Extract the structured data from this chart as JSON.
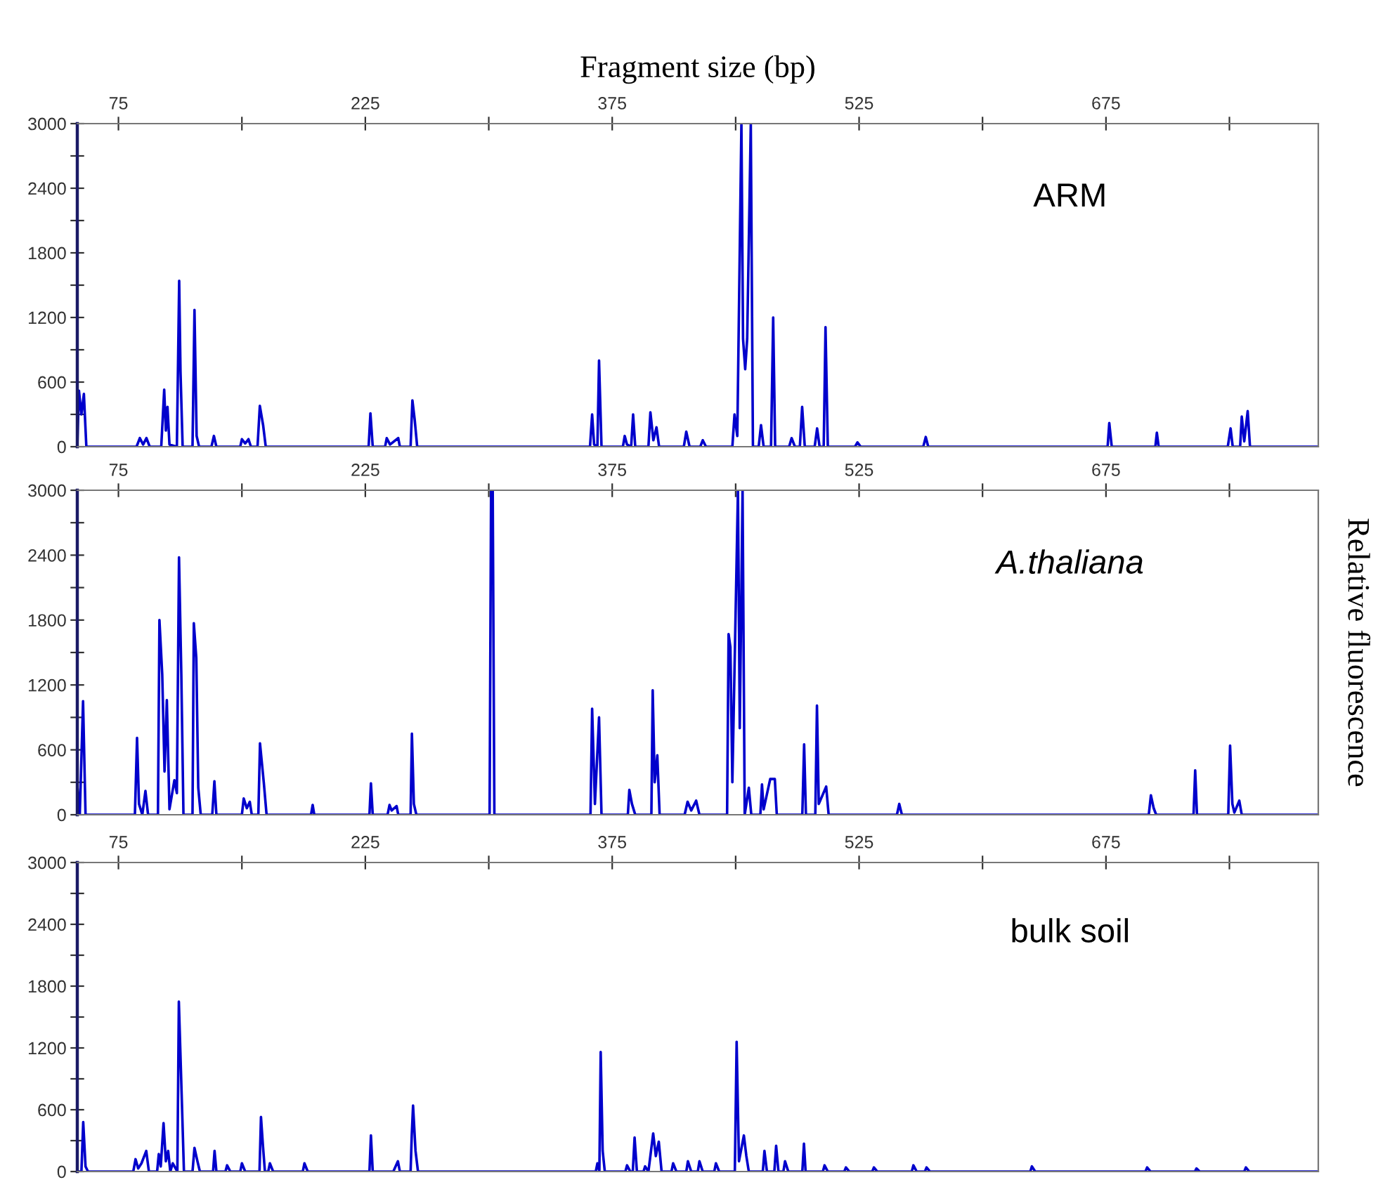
{
  "chart_data": [
    {
      "type": "line",
      "title": "ARM",
      "xlabel": "Fragment size (bp)",
      "xlim": [
        50,
        804
      ],
      "ylim": [
        0,
        3000
      ],
      "xticks": [
        75,
        {
          "value": 150,
          "label": null
        },
        225,
        {
          "value": 300,
          "label": null
        },
        375,
        {
          "value": 450,
          "label": null
        },
        525,
        {
          "value": 600,
          "label": null
        },
        675,
        {
          "value": 750,
          "label": null
        }
      ],
      "yticks": [
        0,
        {
          "value": 300,
          "label": null
        },
        600,
        {
          "value": 900,
          "label": null
        },
        1200,
        {
          "value": 1500,
          "label": null
        },
        1800,
        {
          "value": 2100,
          "label": null
        },
        2400,
        {
          "value": 2700,
          "label": null
        },
        3000
      ],
      "series": [
        {
          "color": "#0000cc",
          "x": [
            50,
            51,
            52.5,
            54,
            55.5,
            86,
            88,
            90,
            92,
            94,
            101,
            102.8,
            103.8,
            104.8,
            106,
            110.5,
            111.9,
            112.7,
            114,
            120,
            121.2,
            122.5,
            124,
            131.5,
            133,
            134.5,
            149,
            150,
            152,
            154,
            155.5,
            159.5,
            160.9,
            162.9,
            164.5,
            227,
            228.1,
            229.5,
            237,
            238,
            240,
            245,
            246,
            252.5,
            253.6,
            255,
            256.5,
            361.5,
            362.8,
            364,
            366,
            367,
            368.5,
            381.5,
            382.6,
            384,
            386.5,
            387.7,
            389,
            397,
            398.2,
            400,
            401.9,
            403.5,
            418.5,
            420,
            422,
            428.5,
            430,
            432,
            448,
            449.3,
            451,
            453.5,
            454.5,
            455.8,
            457,
            459.2,
            460.5,
            464,
            465.4,
            467,
            471.5,
            472.8,
            474,
            482.5,
            484,
            486,
            489,
            490.4,
            492,
            498,
            499.5,
            501,
            503.5,
            504.6,
            506,
            522.5,
            524,
            526,
            564,
            565.5,
            567,
            676,
            677,
            678.5,
            705,
            705.9,
            707,
            749,
            750.7,
            752,
            756.5,
            757.5,
            759,
            761.1,
            762.5,
            804
          ],
          "values": [
            0,
            520,
            300,
            490,
            0,
            0,
            80,
            20,
            80,
            0,
            0,
            530,
            150,
            370,
            20,
            0,
            1540,
            700,
            0,
            0,
            1270,
            100,
            0,
            0,
            100,
            0,
            0,
            70,
            30,
            70,
            0,
            0,
            380,
            200,
            0,
            0,
            310,
            0,
            0,
            80,
            20,
            80,
            0,
            0,
            430,
            250,
            0,
            0,
            300,
            20,
            0,
            800,
            0,
            0,
            100,
            20,
            0,
            300,
            0,
            0,
            320,
            60,
            180,
            0,
            0,
            140,
            0,
            0,
            60,
            0,
            0,
            300,
            100,
            3000,
            1000,
            720,
            1000,
            3000,
            0,
            0,
            200,
            0,
            0,
            1200,
            0,
            0,
            80,
            0,
            0,
            370,
            0,
            0,
            170,
            0,
            0,
            1110,
            0,
            0,
            40,
            0,
            0,
            90,
            0,
            0,
            220,
            0,
            0,
            130,
            0,
            0,
            170,
            0,
            0,
            280,
            50,
            330,
            0,
            0
          ]
        }
      ]
    },
    {
      "type": "line",
      "title": "A.thaliana",
      "ylabel": "Relative fluorescence",
      "xlim": [
        50,
        804
      ],
      "ylim": [
        0,
        3000
      ],
      "xticks": [
        75,
        {
          "value": 150,
          "label": null
        },
        225,
        {
          "value": 300,
          "label": null
        },
        375,
        {
          "value": 450,
          "label": null
        },
        525,
        {
          "value": 600,
          "label": null
        },
        675,
        {
          "value": 750,
          "label": null
        }
      ],
      "yticks": [
        0,
        {
          "value": 300,
          "label": null
        },
        600,
        {
          "value": 900,
          "label": null
        },
        1200,
        {
          "value": 1500,
          "label": null
        },
        1800,
        {
          "value": 2100,
          "label": null
        },
        2400,
        {
          "value": 2700,
          "label": null
        },
        3000
      ],
      "series": [
        {
          "color": "#0000cc",
          "x": [
            50,
            50.1,
            51.5,
            53.5,
            55,
            85,
            86.3,
            87.5,
            89.5,
            91.4,
            93,
            99,
            99.9,
            101.6,
            103,
            104.4,
            106,
            109,
            110.5,
            111.8,
            113.2,
            114.5,
            120,
            120.8,
            122.3,
            123.5,
            125,
            132,
            133.3,
            134.5,
            150,
            151.1,
            153,
            154.8,
            156,
            160,
            161,
            163.3,
            165,
            192,
            193,
            194,
            227.5,
            228.4,
            229.5,
            238.5,
            239.7,
            241,
            244,
            245,
            252.5,
            253.3,
            254.5,
            256,
            300.5,
            301.4,
            302.4,
            303.4,
            361.8,
            362.8,
            364.5,
            367,
            368.5,
            384.5,
            385.4,
            387,
            389,
            398.8,
            399.6,
            400.8,
            402.4,
            403.8,
            419,
            420.8,
            423,
            426,
            428,
            444.8,
            445.7,
            446.8,
            448,
            451.4,
            452.5,
            454.2,
            455.5,
            458,
            459.5,
            465,
            466,
            467,
            471,
            473.8,
            475,
            490.5,
            491.6,
            492.7,
            498.4,
            499.4,
            500.5,
            505,
            506.5,
            548,
            549.4,
            551,
            701,
            702.3,
            704,
            705.5,
            728.2,
            729.2,
            730.3,
            749.3,
            750.4,
            751.8,
            753,
            756,
            757.5,
            804
          ],
          "values": [
            0,
            250,
            0,
            1050,
            0,
            0,
            710,
            100,
            0,
            220,
            0,
            0,
            1800,
            1300,
            400,
            1060,
            50,
            320,
            200,
            2380,
            1300,
            0,
            0,
            1770,
            1450,
            250,
            0,
            0,
            310,
            0,
            0,
            150,
            60,
            120,
            0,
            0,
            660,
            300,
            0,
            0,
            90,
            0,
            0,
            290,
            0,
            0,
            90,
            40,
            80,
            0,
            0,
            750,
            100,
            0,
            0,
            3000,
            3000,
            0,
            0,
            980,
            100,
            900,
            0,
            0,
            230,
            100,
            0,
            0,
            1150,
            300,
            550,
            0,
            0,
            120,
            40,
            130,
            0,
            0,
            1670,
            1550,
            300,
            3000,
            800,
            3000,
            0,
            250,
            0,
            0,
            280,
            50,
            330,
            330,
            0,
            0,
            650,
            0,
            0,
            1010,
            100,
            260,
            0,
            0,
            100,
            0,
            0,
            180,
            60,
            0,
            0,
            410,
            0,
            0,
            640,
            100,
            20,
            130,
            0,
            0
          ]
        }
      ]
    },
    {
      "type": "line",
      "title": "bulk soil",
      "xlim": [
        50,
        804
      ],
      "ylim": [
        0,
        3000
      ],
      "xticks": [
        75,
        {
          "value": 150,
          "label": null
        },
        225,
        {
          "value": 300,
          "label": null
        },
        375,
        {
          "value": 450,
          "label": null
        },
        525,
        {
          "value": 600,
          "label": null
        },
        675,
        {
          "value": 750,
          "label": null
        }
      ],
      "yticks": [
        0,
        {
          "value": 300,
          "label": null
        },
        600,
        {
          "value": 900,
          "label": null
        },
        1200,
        {
          "value": 1500,
          "label": null
        },
        1800,
        {
          "value": 2100,
          "label": null
        },
        2400,
        {
          "value": 2700,
          "label": null
        },
        3000
      ],
      "series": [
        {
          "color": "#0000cc",
          "x": [
            50,
            52.5,
            53.6,
            55,
            56.5,
            84,
            85.4,
            87,
            89,
            91.9,
            93.5,
            98.5,
            99.5,
            100.7,
            102.4,
            103.8,
            105.2,
            106.5,
            108,
            110.8,
            111.7,
            113.4,
            114.8,
            120,
            121.2,
            123,
            124.5,
            132.5,
            133.4,
            134.5,
            140,
            141,
            143,
            149,
            150,
            152,
            160.7,
            161.6,
            162.8,
            164,
            166,
            167,
            169,
            187,
            188,
            190,
            227.5,
            228.4,
            229.5,
            242,
            244.8,
            246,
            252.5,
            253.2,
            254,
            255.5,
            257,
            365,
            366,
            367.2,
            368,
            369.2,
            370.5,
            383,
            384,
            386,
            387.5,
            388.6,
            390,
            394,
            395,
            397,
            399.9,
            401.5,
            403.3,
            405,
            411,
            412,
            414,
            420,
            421,
            423,
            427,
            428,
            430,
            437,
            438,
            440,
            449.5,
            450.6,
            452,
            455,
            456.5,
            458,
            466.5,
            467.5,
            469,
            473.5,
            474.6,
            476,
            479,
            480,
            482,
            490.5,
            491.5,
            492.5,
            503,
            504,
            506,
            516,
            517,
            519,
            533,
            534,
            536,
            557,
            558,
            560,
            565,
            566,
            568,
            629,
            630,
            632,
            699,
            700,
            702,
            729,
            730,
            732,
            759,
            760,
            762,
            804
          ],
          "values": [
            0,
            0,
            480,
            50,
            0,
            0,
            120,
            30,
            80,
            200,
            0,
            0,
            170,
            50,
            470,
            100,
            200,
            0,
            80,
            0,
            1650,
            750,
            0,
            0,
            230,
            100,
            0,
            0,
            200,
            0,
            0,
            60,
            0,
            0,
            80,
            0,
            0,
            530,
            250,
            0,
            0,
            80,
            0,
            0,
            80,
            0,
            0,
            350,
            0,
            0,
            100,
            0,
            0,
            350,
            640,
            200,
            0,
            0,
            80,
            0,
            1160,
            200,
            0,
            0,
            60,
            0,
            0,
            330,
            0,
            0,
            50,
            0,
            370,
            150,
            290,
            0,
            0,
            80,
            0,
            0,
            100,
            0,
            0,
            100,
            0,
            0,
            80,
            0,
            0,
            1260,
            100,
            350,
            150,
            0,
            0,
            200,
            0,
            0,
            250,
            0,
            0,
            100,
            0,
            0,
            270,
            0,
            0,
            60,
            0,
            0,
            40,
            0,
            0,
            40,
            0,
            0,
            60,
            0,
            0,
            40,
            0,
            0,
            50,
            0,
            0,
            40,
            0,
            0,
            30,
            0,
            0,
            40,
            0,
            0
          ]
        }
      ]
    }
  ]
}
